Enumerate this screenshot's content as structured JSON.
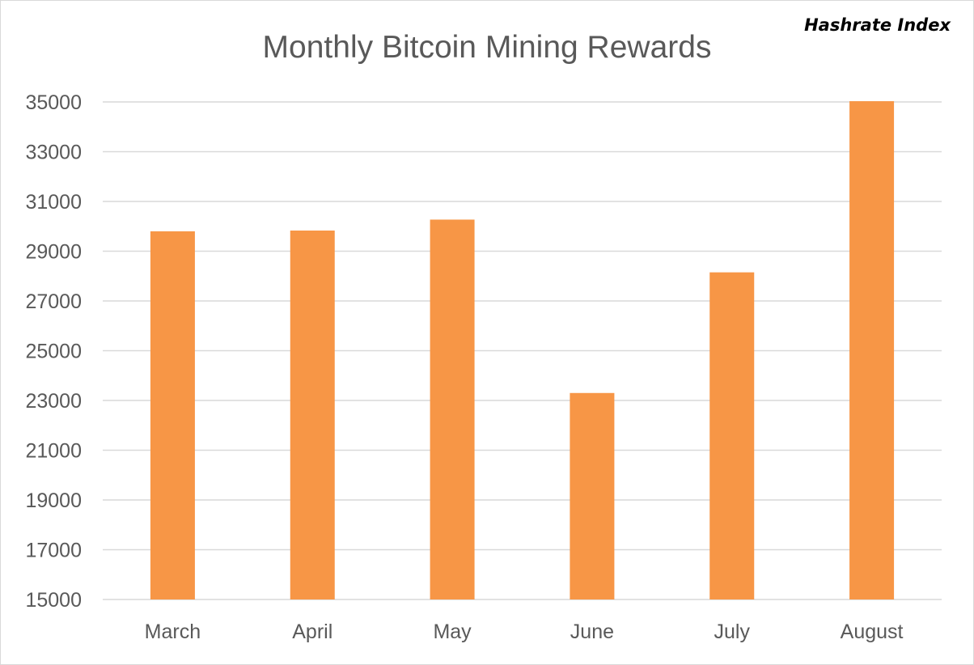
{
  "watermark": "Hashrate Index",
  "colors": {
    "bar": "#f79646",
    "grid": "#d9d9d9",
    "text": "#595959"
  },
  "chart_data": {
    "type": "bar",
    "title": "Monthly Bitcoin Mining Rewards",
    "xlabel": "",
    "ylabel": "",
    "categories": [
      "March",
      "April",
      "May",
      "June",
      "July",
      "August"
    ],
    "values": [
      29800,
      29830,
      30270,
      23300,
      28150,
      35030
    ],
    "ylim": [
      15000,
      35000
    ],
    "yticks": [
      15000,
      17000,
      19000,
      21000,
      23000,
      25000,
      27000,
      29000,
      31000,
      33000,
      35000
    ],
    "grid": true,
    "legend": "none"
  }
}
